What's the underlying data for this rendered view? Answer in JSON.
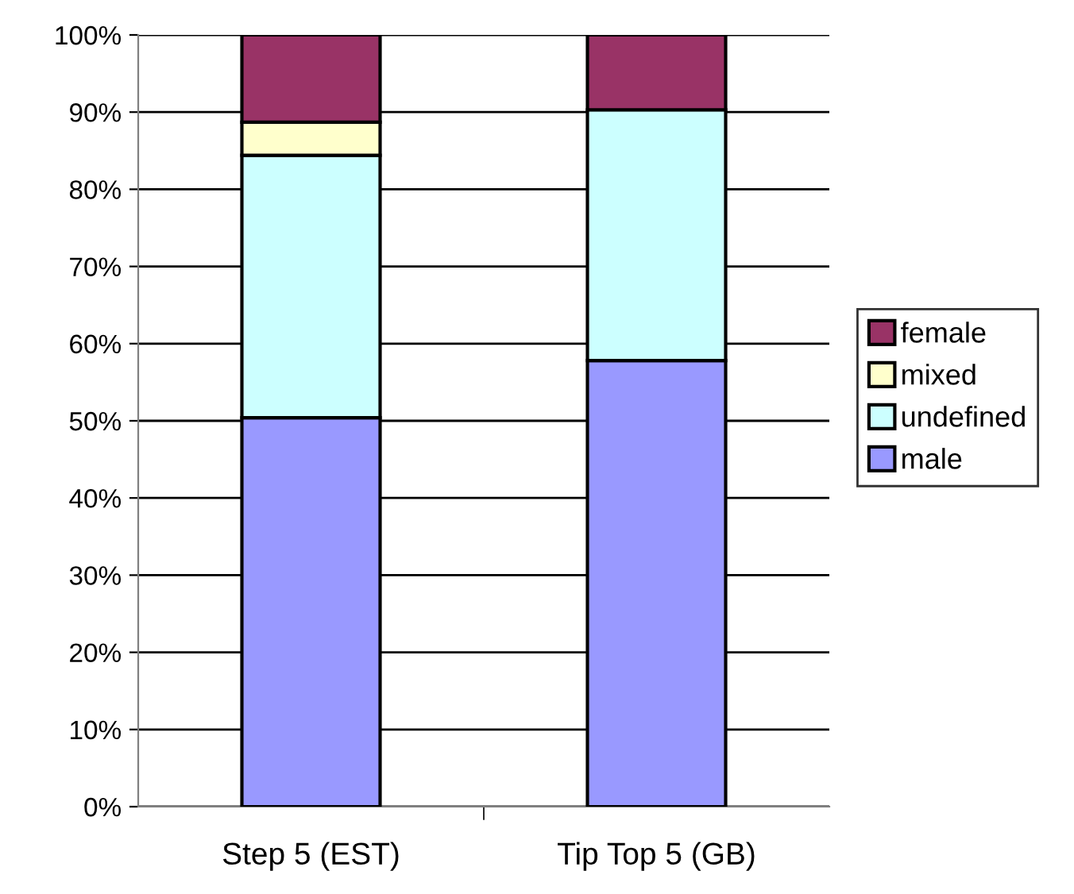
{
  "chart_data": {
    "type": "bar",
    "stacked": true,
    "categories": [
      "Step 5 (EST)",
      "Tip Top 5 (GB)"
    ],
    "series": [
      {
        "name": "male",
        "color": "#9999ff",
        "values": [
          50.4,
          57.8
        ]
      },
      {
        "name": "undefined",
        "color": "#ccffff",
        "values": [
          34.0,
          32.5
        ]
      },
      {
        "name": "mixed",
        "color": "#ffffcc",
        "values": [
          4.3,
          0
        ]
      },
      {
        "name": "female",
        "color": "#993366",
        "values": [
          11.3,
          9.7
        ]
      }
    ],
    "ylim": [
      0,
      100
    ],
    "yticks": [
      {
        "value": 0,
        "label": "0%"
      },
      {
        "value": 10,
        "label": "10%"
      },
      {
        "value": 20,
        "label": "20%"
      },
      {
        "value": 30,
        "label": "30%"
      },
      {
        "value": 40,
        "label": "40%"
      },
      {
        "value": 50,
        "label": "50%"
      },
      {
        "value": 60,
        "label": "60%"
      },
      {
        "value": 70,
        "label": "70%"
      },
      {
        "value": 80,
        "label": "80%"
      },
      {
        "value": 90,
        "label": "90%"
      },
      {
        "value": 100,
        "label": "100%"
      }
    ],
    "grid": "y",
    "legend": "right"
  }
}
